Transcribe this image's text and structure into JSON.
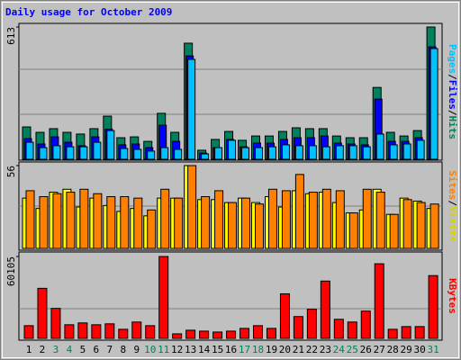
{
  "chart_data": [
    {
      "type": "bar",
      "title": "Daily usage for October 2009",
      "categories": [
        "1",
        "2",
        "3",
        "4",
        "5",
        "6",
        "7",
        "8",
        "9",
        "10",
        "11",
        "12",
        "13",
        "14",
        "15",
        "16",
        "17",
        "18",
        "19",
        "20",
        "21",
        "22",
        "23",
        "24",
        "25",
        "26",
        "27",
        "28",
        "29",
        "30",
        "31"
      ],
      "category_colors": [
        "#000000",
        "#000000",
        "#00805c",
        "#00805c",
        "#000000",
        "#000000",
        "#000000",
        "#000000",
        "#000000",
        "#00805c",
        "#00805c",
        "#000000",
        "#000000",
        "#000000",
        "#000000",
        "#000000",
        "#00805c",
        "#00805c",
        "#000000",
        "#000000",
        "#000000",
        "#000000",
        "#000000",
        "#00805c",
        "#00805c",
        "#000000",
        "#000000",
        "#000000",
        "#000000",
        "#000000",
        "#00805c"
      ],
      "legend_separator": "/",
      "series": [
        {
          "name": "Hits",
          "color": "#00805c",
          "values": [
            150,
            125,
            142,
            125,
            117,
            142,
            200,
            100,
            104,
            83,
            213,
            125,
            538,
            42,
            92,
            129,
            88,
            108,
            108,
            129,
            146,
            142,
            142,
            108,
            100,
            100,
            333,
            125,
            108,
            133,
            613
          ]
        },
        {
          "name": "Files",
          "color": "#0000ff",
          "values": [
            96,
            71,
            104,
            79,
            63,
            104,
            140,
            67,
            71,
            54,
            158,
            83,
            479,
            29,
            54,
            92,
            58,
            75,
            75,
            92,
            100,
            100,
            108,
            75,
            71,
            67,
            279,
            83,
            83,
            100,
            521
          ]
        },
        {
          "name": "Pages",
          "color": "#00c0ff",
          "values": [
            79,
            54,
            63,
            58,
            58,
            79,
            133,
            50,
            46,
            38,
            54,
            46,
            463,
            25,
            54,
            88,
            54,
            54,
            58,
            67,
            63,
            63,
            58,
            63,
            63,
            58,
            117,
            67,
            71,
            88,
            513
          ]
        }
      ],
      "ylim": [
        0,
        613
      ],
      "yticks": [
        613
      ]
    },
    {
      "type": "bar",
      "series": [
        {
          "name": "Visits",
          "color": "#ffff00",
          "values": [
            34,
            27,
            38,
            40,
            28,
            34,
            29,
            25,
            27,
            22,
            34,
            34,
            56,
            33,
            33,
            31,
            34,
            31,
            35,
            28,
            39,
            37,
            38,
            31,
            24,
            26,
            40,
            23,
            34,
            32,
            27
          ]
        },
        {
          "name": "Sites",
          "color": "#ff8000",
          "values": [
            39,
            35,
            37,
            38,
            40,
            37,
            35,
            35,
            34,
            26,
            40,
            34,
            56,
            35,
            39,
            31,
            34,
            30,
            40,
            39,
            50,
            38,
            40,
            39,
            24,
            40,
            38,
            23,
            33,
            31,
            30
          ]
        }
      ],
      "ylim": [
        0,
        56
      ],
      "yticks": [
        56
      ]
    },
    {
      "type": "bar",
      "series": [
        {
          "name": "KBytes",
          "color": "#ff0000",
          "values": [
            9350,
            36740,
            22040,
            10020,
            11360,
            10020,
            10690,
            6680,
            12020,
            9350,
            60105,
            3340,
            6010,
            5340,
            4680,
            5340,
            7350,
            9350,
            7350,
            32730,
            16030,
            21380,
            42080,
            14030,
            12020,
            20040,
            54770,
            6680,
            8680,
            8680,
            46090
          ]
        }
      ],
      "ylim": [
        0,
        60105
      ],
      "yticks": [
        60105
      ]
    }
  ]
}
